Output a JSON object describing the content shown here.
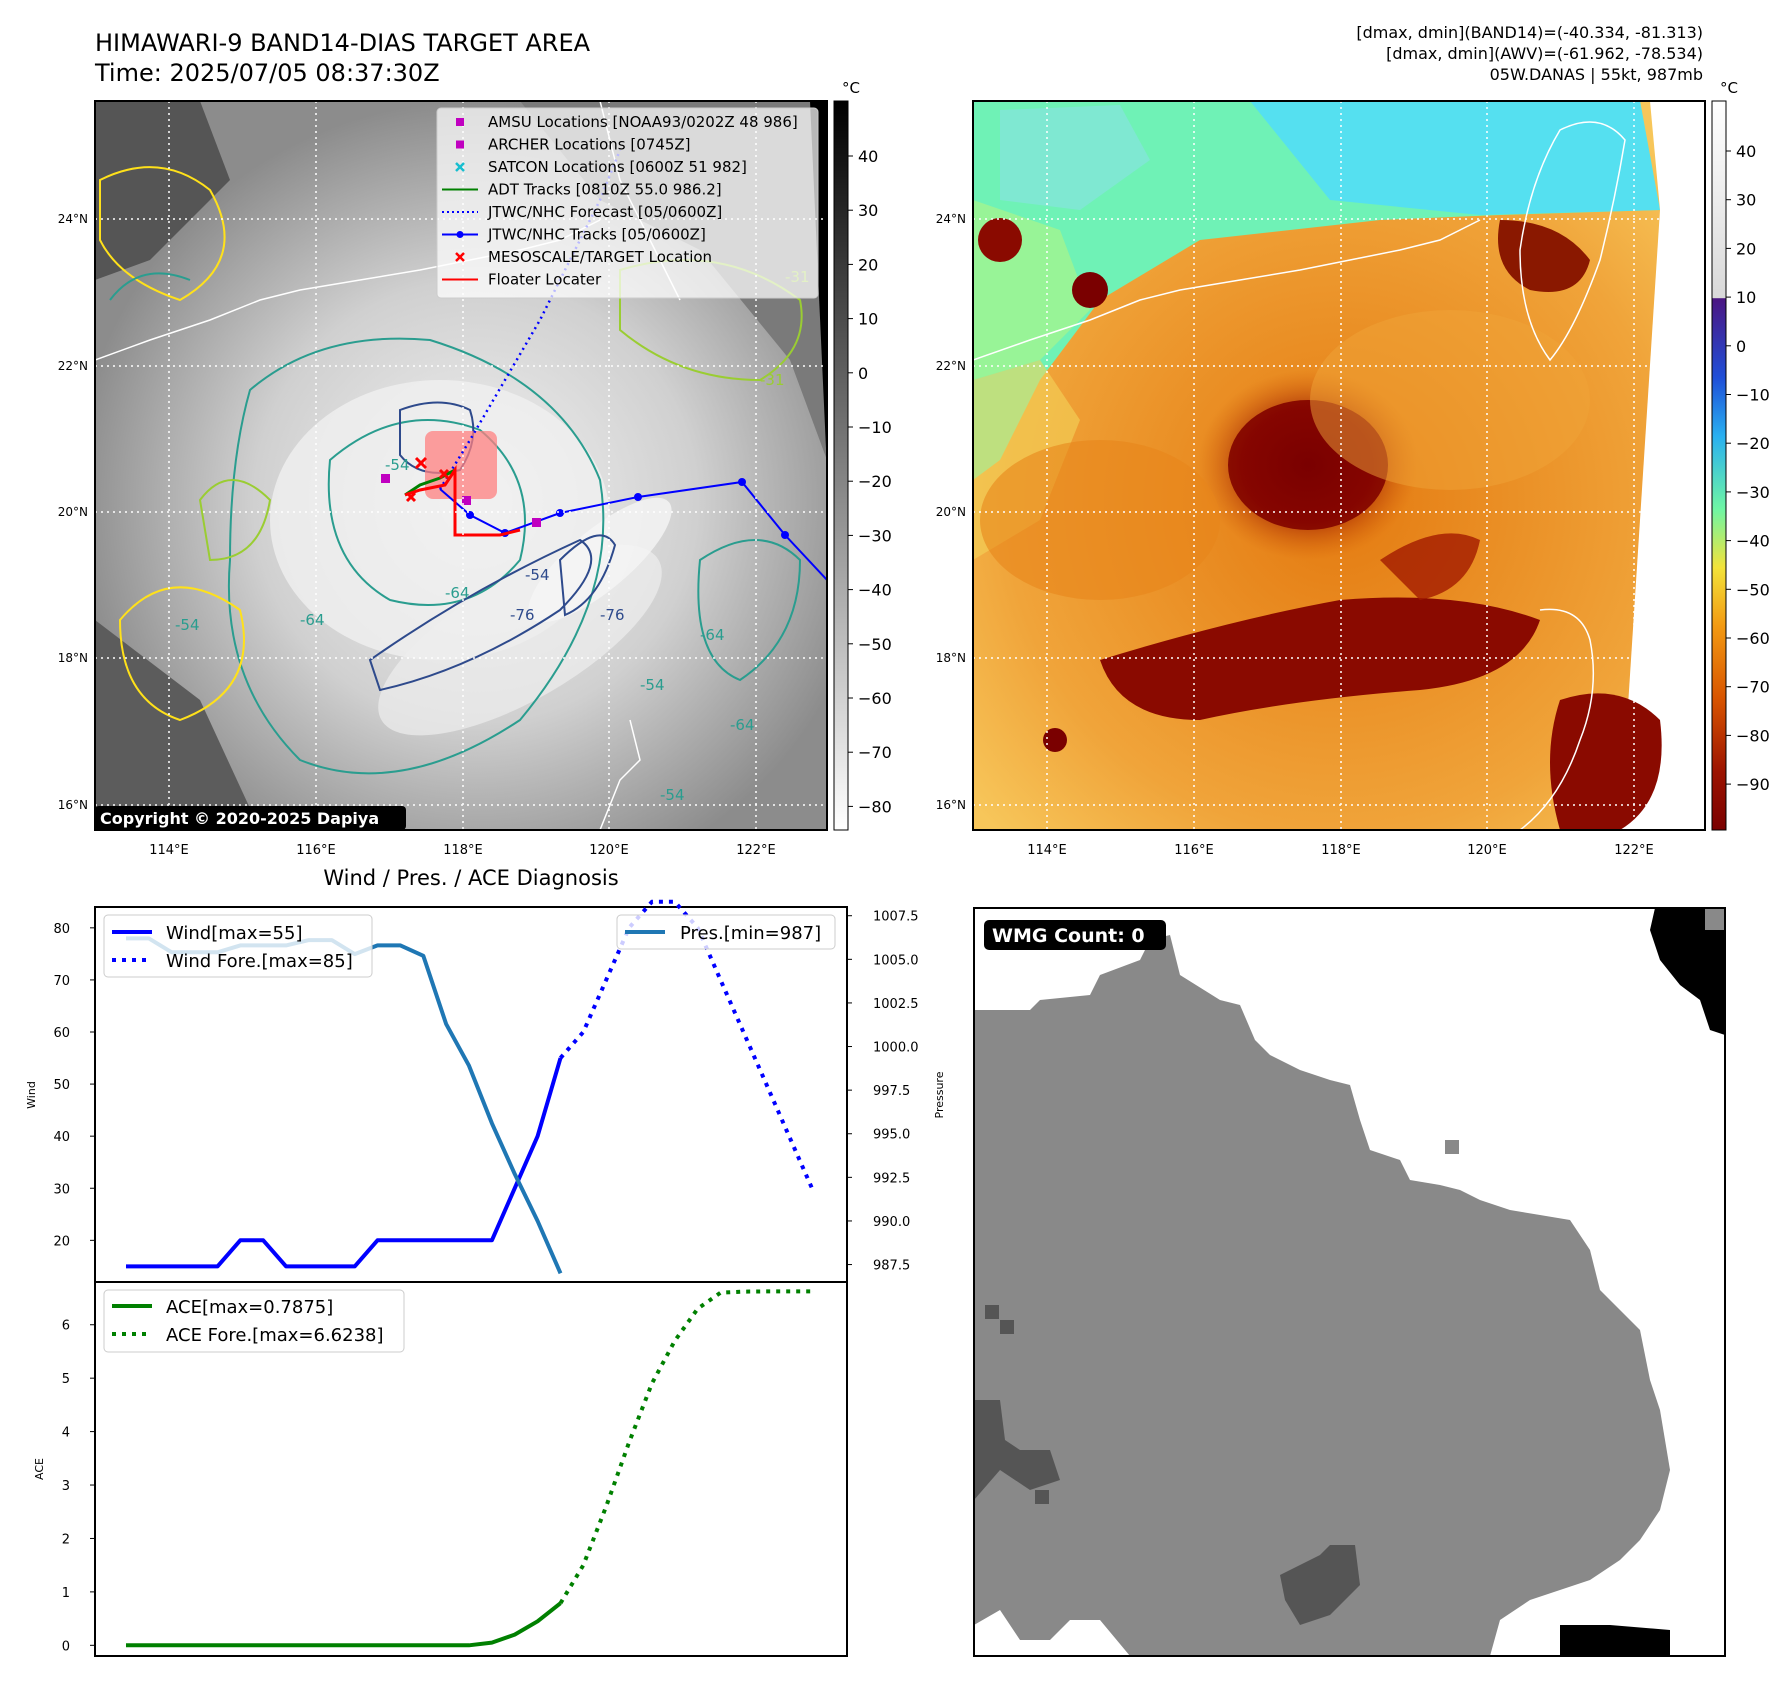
{
  "header": {
    "title_line1": "HIMAWARI-9 BAND14-DIAS TARGET AREA",
    "title_line2": "Time: 2025/07/05 08:37:30Z",
    "info_line1": "[dmax, dmin](BAND14)=(-40.334, -81.313)",
    "info_line2": "[dmax, dmin](AWV)=(-61.962, -78.534)",
    "info_line3": "05W.DANAS | 55kt, 987mb"
  },
  "copyright": "Copyright © 2020-2025 Dapiya",
  "map_axes": {
    "lat_labels": [
      "24°N",
      "22°N",
      "20°N",
      "18°N",
      "16°N"
    ],
    "lon_labels": [
      "114°E",
      "116°E",
      "118°E",
      "120°E",
      "122°E"
    ]
  },
  "colorbar_left": {
    "unit": "°C",
    "ticks": [
      "40",
      "30",
      "20",
      "10",
      "0",
      "−10",
      "−20",
      "−30",
      "−40",
      "−50",
      "−60",
      "−70",
      "−80"
    ]
  },
  "colorbar_right": {
    "unit": "°C",
    "ticks": [
      "40",
      "30",
      "20",
      "10",
      "0",
      "−10",
      "−20",
      "−30",
      "−40",
      "−50",
      "−60",
      "−70",
      "−80",
      "−90"
    ]
  },
  "map_legend": [
    {
      "label": "AMSU Locations [NOAA93/0202Z 48 986]",
      "marker": "square",
      "color": "#c000c0"
    },
    {
      "label": "ARCHER Locations [0745Z]",
      "marker": "square",
      "color": "#c000c0"
    },
    {
      "label": "SATCON Locations [0600Z 51 982]",
      "marker": "x",
      "color": "#17becf"
    },
    {
      "label": "ADT Tracks [0810Z 55.0 986.2]",
      "marker": "line",
      "color": "#008000"
    },
    {
      "label": "JTWC/NHC Forecast [05/0600Z]",
      "marker": "dotted",
      "color": "#0000ff"
    },
    {
      "label": "JTWC/NHC Tracks [05/0600Z]",
      "marker": "line-dot",
      "color": "#0000ff"
    },
    {
      "label": "MESOSCALE/TARGET Location",
      "marker": "x",
      "color": "#ff0000"
    },
    {
      "label": "Floater Locater",
      "marker": "line",
      "color": "#ff0000"
    }
  ],
  "contour_labels": [
    "-54",
    "-64",
    "-76",
    "-54",
    "-64",
    "-54",
    "-76",
    "-64",
    "-54",
    "-64",
    "-54",
    "-31",
    "-31"
  ],
  "diag": {
    "title": "Wind / Pres. / ACE Diagnosis",
    "wind_ylabel": "Wind",
    "pres_ylabel": "Pressure",
    "ace_ylabel": "ACE",
    "wind_ticks": [
      "80",
      "70",
      "60",
      "50",
      "40",
      "30",
      "20"
    ],
    "pres_ticks": [
      "1007.5",
      "1005.0",
      "1002.5",
      "1000.0",
      "997.5",
      "995.0",
      "992.5",
      "990.0",
      "987.5"
    ],
    "ace_ticks": [
      "6",
      "5",
      "4",
      "3",
      "2",
      "1",
      "0"
    ],
    "legend_wind": "Wind[max=55]",
    "legend_wind_fore": "Wind Fore.[max=85]",
    "legend_pres": "Pres.[min=987]",
    "legend_ace": "ACE[max=0.7875]",
    "legend_ace_fore": "ACE Fore.[max=6.6238]"
  },
  "wmg": {
    "label": "WMG Count: 0"
  },
  "chart_data": [
    {
      "type": "line",
      "title": "Wind / Pres. / ACE Diagnosis",
      "ylabel": "Wind",
      "ylim": [
        12,
        84
      ],
      "series": [
        {
          "name": "Wind[max=55]",
          "style": "solid",
          "color": "#0000ff",
          "x": [
            0,
            1,
            2,
            3,
            4,
            5,
            6,
            7,
            8,
            9,
            10,
            11,
            12,
            13,
            14,
            15,
            16,
            17,
            18,
            19
          ],
          "values": [
            15,
            15,
            15,
            15,
            15,
            20,
            20,
            15,
            15,
            15,
            15,
            20,
            20,
            20,
            20,
            20,
            20,
            30,
            40,
            55
          ]
        },
        {
          "name": "Wind Fore.[max=85]",
          "style": "dotted",
          "color": "#0000ff",
          "x": [
            19,
            20,
            21,
            22,
            23,
            24,
            25,
            26,
            27,
            28,
            29,
            30
          ],
          "values": [
            55,
            60,
            70,
            80,
            85,
            85,
            80,
            70,
            60,
            50,
            40,
            30
          ]
        },
        {
          "name": "Pres.[min=987]",
          "style": "solid",
          "color": "#1f77b4",
          "axis": "right",
          "x": [
            0,
            1,
            2,
            3,
            4,
            5,
            6,
            7,
            8,
            9,
            10,
            11,
            12,
            13,
            14,
            15,
            16,
            17,
            18,
            19
          ],
          "values": [
            1006.2,
            1006.2,
            1005.4,
            1005.4,
            1005.4,
            1005.8,
            1005.8,
            1005.8,
            1006.1,
            1006.1,
            1005.3,
            1005.8,
            1005.8,
            1005.2,
            1001.3,
            998.9,
            995.6,
            992.7,
            990.0,
            987.0
          ]
        }
      ],
      "y2label": "Pressure",
      "y2lim": [
        986.5,
        1008.0
      ]
    },
    {
      "type": "line",
      "ylabel": "ACE",
      "ylim": [
        -0.2,
        6.8
      ],
      "series": [
        {
          "name": "ACE[max=0.7875]",
          "style": "solid",
          "color": "#008000",
          "x": [
            0,
            1,
            2,
            3,
            4,
            5,
            6,
            7,
            8,
            9,
            10,
            11,
            12,
            13,
            14,
            15,
            16,
            17,
            18,
            19
          ],
          "values": [
            0,
            0,
            0,
            0,
            0,
            0,
            0,
            0,
            0,
            0,
            0,
            0,
            0,
            0,
            0,
            0,
            0.05,
            0.2,
            0.45,
            0.7875
          ]
        },
        {
          "name": "ACE Fore.[max=6.6238]",
          "style": "dotted",
          "color": "#008000",
          "x": [
            19,
            20,
            21,
            22,
            23,
            24,
            25,
            26,
            27,
            28,
            29,
            30
          ],
          "values": [
            0.7875,
            1.5,
            2.6,
            3.8,
            4.9,
            5.7,
            6.3,
            6.6,
            6.62,
            6.6238,
            6.6238,
            6.6238
          ]
        }
      ]
    }
  ]
}
